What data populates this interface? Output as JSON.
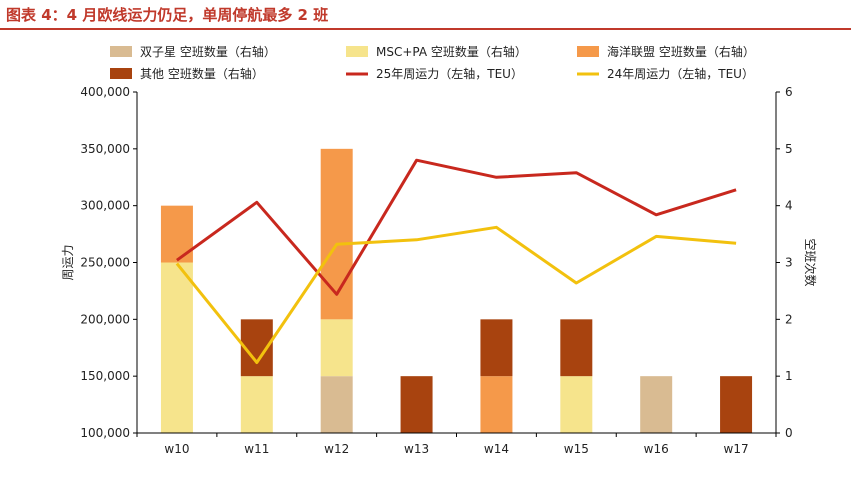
{
  "chart_data": {
    "type": "bar+line",
    "title": "图表 4：4 月欧线运力仍足，单周停航最多 2 班",
    "categories": [
      "w10",
      "w11",
      "w12",
      "w13",
      "w14",
      "w15",
      "w16",
      "w17"
    ],
    "bar_series": [
      {
        "name": "双子星 空班数量（右轴）",
        "color": "#d9bb92",
        "values": [
          0,
          0,
          1,
          0,
          0,
          0,
          1,
          0
        ]
      },
      {
        "name": "MSC+PA  空班数量（右轴）",
        "color": "#f6e48c",
        "values": [
          3,
          1,
          1,
          0,
          0,
          1,
          0,
          0
        ]
      },
      {
        "name": "海洋联盟  空班数量（右轴）",
        "color": "#f5994a",
        "values": [
          1,
          0,
          3,
          0,
          1,
          0,
          0,
          0
        ]
      },
      {
        "name": "其他  空班数量（右轴）",
        "color": "#a8430f",
        "values": [
          0,
          1,
          0,
          1,
          1,
          1,
          0,
          1
        ]
      }
    ],
    "line_series": [
      {
        "name": "25年周运力（左轴，TEU）",
        "color": "#c8281e",
        "values": [
          252000,
          303000,
          222000,
          340000,
          325000,
          329000,
          292000,
          314000
        ]
      },
      {
        "name": "24年周运力（左轴，TEU）",
        "color": "#f2c10e",
        "values": [
          249000,
          162000,
          266000,
          270000,
          281000,
          232000,
          273000,
          267000
        ]
      }
    ],
    "y_left": {
      "label": "周运力",
      "min": 100000,
      "max": 400000,
      "step": 50000,
      "tick_labels": [
        "100,000",
        "150,000",
        "200,000",
        "250,000",
        "300,000",
        "350,000",
        "400,000"
      ]
    },
    "y_right": {
      "label": "空班次数",
      "min": 0,
      "max": 6,
      "step": 1,
      "tick_labels": [
        "0",
        "1",
        "2",
        "3",
        "4",
        "5",
        "6"
      ]
    },
    "grid": false,
    "legend": "top"
  }
}
